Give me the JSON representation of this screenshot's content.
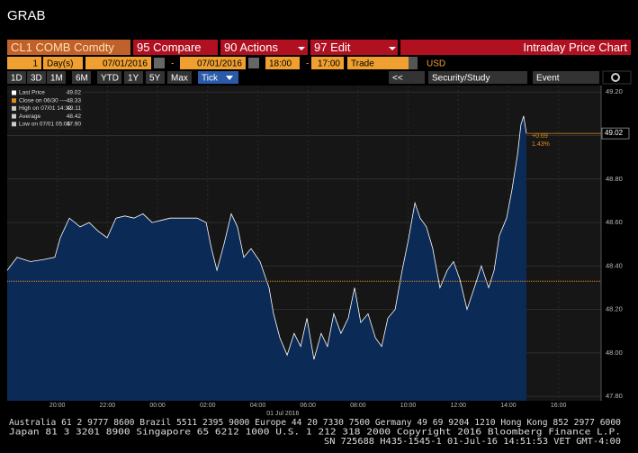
{
  "header": {
    "title": "GRAB"
  },
  "toolbar": {
    "security": "CL1 COMB Comdty",
    "compare": "95 Compare",
    "actions": "90 Actions",
    "edit": "97 Edit",
    "chart_name": "Intraday Price Chart",
    "period_count": "1",
    "period_unit": "Day(s)",
    "start_date": "07/01/2016",
    "end_date": "07/01/2016",
    "start_time": "18:00",
    "end_time": "17:00",
    "dash_1": "-",
    "dash_2": "-",
    "field": "Trade",
    "currency": "USD",
    "ranges": [
      "1D",
      "3D",
      "1M",
      "6M",
      "YTD",
      "1Y",
      "5Y",
      "Max"
    ],
    "frequency": "Tick",
    "back": "<<",
    "study": "Security/Study",
    "event": "Event"
  },
  "legend": [
    {
      "label": "Last Price",
      "value": "49.02"
    },
    {
      "label": "Close on 06/30 ----",
      "value": "48.33"
    },
    {
      "label": "High on 07/01 14:32",
      "value": "49.11"
    },
    {
      "label": "Average",
      "value": "48.42"
    },
    {
      "label": "Low on 07/01 05:05",
      "value": "47.90"
    }
  ],
  "chart_data": {
    "type": "area",
    "x_date_label": "01 Jul 2016",
    "x": [
      0,
      0.39,
      0.93,
      1.47,
      1.9,
      2.12,
      2.48,
      2.91,
      3.27,
      3.63,
      3.99,
      4.34,
      4.7,
      5.06,
      5.42,
      5.78,
      6.14,
      6.5,
      6.86,
      7.22,
      7.58,
      7.94,
      8.15,
      8.37,
      8.65,
      8.94,
      9.19,
      9.44,
      9.73,
      10.09,
      10.45,
      10.63,
      10.88,
      11.17,
      11.45,
      11.71,
      11.96,
      12.24,
      12.53,
      12.78,
      13.03,
      13.32,
      13.61,
      13.86,
      14.11,
      14.4,
      14.69,
      14.94,
      15.19,
      15.48,
      15.76,
      16.01,
      16.27,
      16.48,
      16.73,
      16.98,
      17.27,
      17.56,
      17.81,
      18.06,
      18.35,
      18.64,
      18.92,
      19.21,
      19.43,
      19.64,
      19.93,
      20.14,
      20.36,
      20.5,
      20.61,
      20.72
    ],
    "series": [
      {
        "name": "Last Price",
        "color": "#ffffff",
        "fill": "#0c2a56",
        "values": [
          48.38,
          48.44,
          48.42,
          48.43,
          48.44,
          48.53,
          48.62,
          48.58,
          48.6,
          48.56,
          48.53,
          48.62,
          48.63,
          48.62,
          48.64,
          48.6,
          48.61,
          48.62,
          48.62,
          48.62,
          48.62,
          48.6,
          48.48,
          48.38,
          48.5,
          48.64,
          48.58,
          48.44,
          48.48,
          48.42,
          48.3,
          48.18,
          48.07,
          47.99,
          48.09,
          48.03,
          48.16,
          47.97,
          48.09,
          48.03,
          48.18,
          48.09,
          48.16,
          48.3,
          48.14,
          48.18,
          48.07,
          48.03,
          48.16,
          48.2,
          48.38,
          48.52,
          48.69,
          48.62,
          48.58,
          48.48,
          48.3,
          48.38,
          48.42,
          48.34,
          48.2,
          48.3,
          48.4,
          48.3,
          48.38,
          48.54,
          48.62,
          48.75,
          48.91,
          49.05,
          49.09,
          49.01
        ]
      }
    ],
    "close": 48.33,
    "close_color": "#e08a1e",
    "last_price_label": "49.02",
    "annotations": [
      "+0.69",
      "1.43%"
    ],
    "xlim": [
      0,
      23.7
    ],
    "xticks": [
      {
        "value": 2,
        "label": "20:00"
      },
      {
        "value": 4,
        "label": "22:00"
      },
      {
        "value": 6,
        "label": "00:00"
      },
      {
        "value": 8,
        "label": "02:00"
      },
      {
        "value": 10,
        "label": "04:00"
      },
      {
        "value": 12,
        "label": "06:00"
      },
      {
        "value": 14,
        "label": "08:00"
      },
      {
        "value": 16,
        "label": "10:00"
      },
      {
        "value": 18,
        "label": "12:00"
      },
      {
        "value": 20,
        "label": "14:00"
      },
      {
        "value": 22,
        "label": "16:00"
      }
    ],
    "ylim": [
      47.78,
      49.23
    ],
    "yticks": [
      {
        "value": 47.8,
        "label": "47.80"
      },
      {
        "value": 48,
        "label": "48.00"
      },
      {
        "value": 48.2,
        "label": "48.20"
      },
      {
        "value": 48.4,
        "label": "48.40"
      },
      {
        "value": 48.6,
        "label": "48.60"
      },
      {
        "value": 48.8,
        "label": "48.80"
      },
      {
        "value": 49,
        "label": "49.00"
      },
      {
        "value": 49.2,
        "label": "49.20"
      }
    ],
    "grid": true
  },
  "footer": {
    "lines": [
      "Australia 61 2 9777 8600 Brazil 5511 2395 9000 Europe 44 20 7330 7500 Germany 49 69 9204 1210 Hong Kong 852 2977 6000",
      "Japan 81 3 3201 8900       Singapore 65 6212 1000       U.S. 1 212 318 2000       Copyright 2016 Bloomberg Finance L.P.",
      "SN 725688 H435-1545-1 01-Jul-16 14:51:53 VET  GMT-4:00"
    ]
  }
}
